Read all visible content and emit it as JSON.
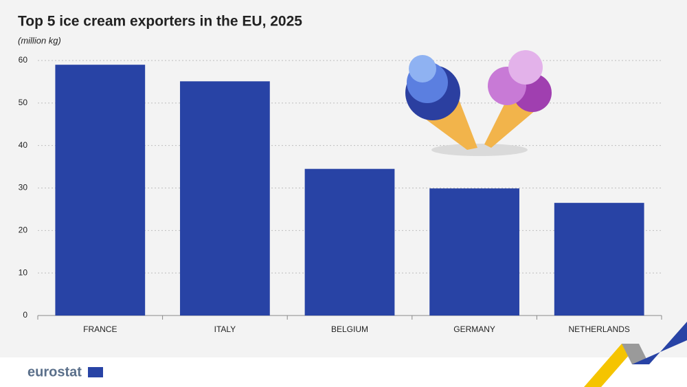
{
  "chart_data": {
    "type": "bar",
    "title": "Top 5 ice cream exporters in the EU, 2025",
    "subtitle": "(million kg)",
    "categories": [
      "FRANCE",
      "ITALY",
      "BELGIUM",
      "GERMANY",
      "NETHERLANDS"
    ],
    "values": [
      59,
      55.1,
      34.5,
      29.9,
      26.5
    ],
    "color": "#2843a5",
    "ylim": [
      0,
      60
    ],
    "yticks": [
      0,
      10,
      20,
      30,
      40,
      50,
      60
    ],
    "grid": true
  },
  "branding": {
    "logo": "eurostat"
  }
}
